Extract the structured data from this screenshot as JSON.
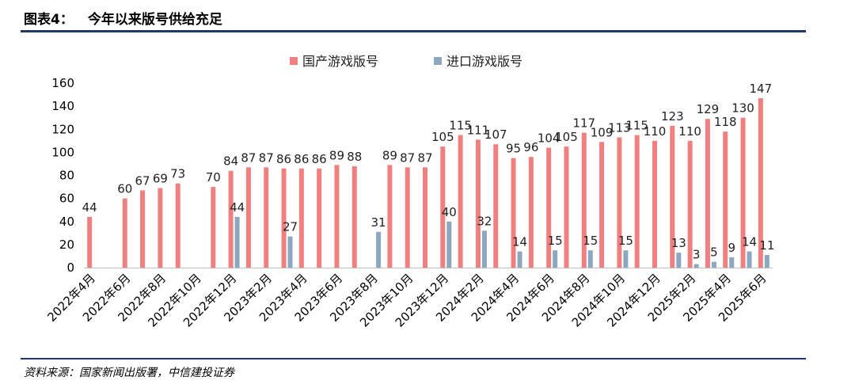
{
  "header": {
    "figure_label": "图表4：",
    "title": "今年以来版号供给充足"
  },
  "source": "资料来源：国家新闻出版署，中信建投证券",
  "colors": {
    "domestic": "#f08080",
    "imported": "#8ba8c0",
    "rule": "#1f3a66"
  },
  "chart_data": {
    "type": "bar",
    "title": "今年以来版号供给充足",
    "xlabel": "",
    "ylabel": "",
    "ylim": [
      0,
      160
    ],
    "yticks": [
      0,
      20,
      40,
      60,
      80,
      100,
      120,
      140,
      160
    ],
    "legend_position": "top-center",
    "grid": false,
    "categories": [
      "2022年4月",
      "2022年5月",
      "2022年6月",
      "2022年7月",
      "2022年8月",
      "2022年9月",
      "2022年10月",
      "2022年11月",
      "2022年12月",
      "2023年1月",
      "2023年2月",
      "2023年3月",
      "2023年4月",
      "2023年5月",
      "2023年6月",
      "2023年7月",
      "2023年8月",
      "2023年9月",
      "2023年10月",
      "2023年11月",
      "2023年12月",
      "2024年1月",
      "2024年2月",
      "2024年3月",
      "2024年4月",
      "2024年5月",
      "2024年6月",
      "2024年7月",
      "2024年8月",
      "2024年9月",
      "2024年10月",
      "2024年11月",
      "2024年12月",
      "2025年1月",
      "2025年2月",
      "2025年3月",
      "2025年4月",
      "2025年5月",
      "2025年6月"
    ],
    "tick_labels": [
      "2022年4月",
      "2022年6月",
      "2022年8月",
      "2022年10月",
      "2022年12月",
      "2023年2月",
      "2023年4月",
      "2023年6月",
      "2023年8月",
      "2023年10月",
      "2023年12月",
      "2024年2月",
      "2024年4月",
      "2024年6月",
      "2024年8月",
      "2024年10月",
      "2024年12月",
      "2025年2月",
      "2025年4月",
      "2025年6月"
    ],
    "series": [
      {
        "name": "国产游戏版号",
        "color": "#f08080",
        "values": [
          44,
          null,
          60,
          67,
          69,
          73,
          null,
          70,
          84,
          87,
          87,
          86,
          86,
          86,
          89,
          88,
          null,
          89,
          87,
          87,
          105,
          115,
          111,
          107,
          95,
          96,
          104,
          105,
          117,
          109,
          113,
          115,
          110,
          123,
          110,
          129,
          118,
          130,
          147
        ]
      },
      {
        "name": "进口游戏版号",
        "color": "#8ba8c0",
        "values": [
          null,
          null,
          null,
          null,
          null,
          null,
          null,
          null,
          44,
          null,
          null,
          27,
          null,
          null,
          null,
          null,
          31,
          null,
          null,
          null,
          40,
          null,
          32,
          null,
          14,
          null,
          15,
          null,
          15,
          null,
          15,
          null,
          null,
          13,
          3,
          5,
          9,
          14,
          11
        ]
      }
    ]
  }
}
